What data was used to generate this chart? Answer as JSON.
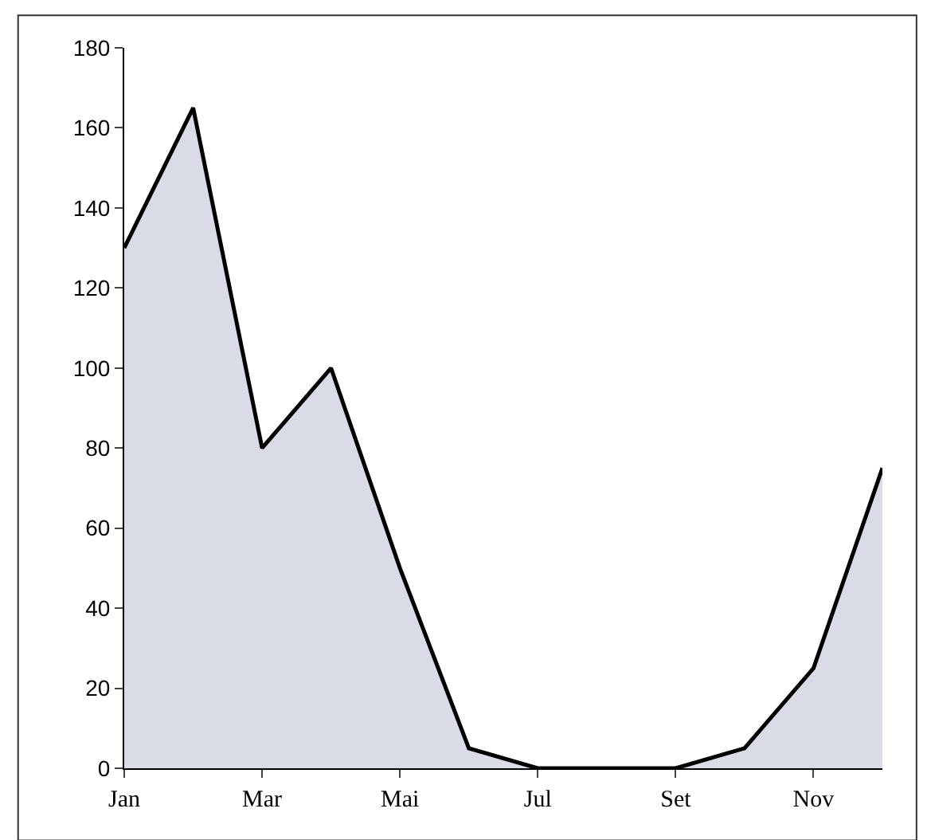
{
  "chart_data": {
    "type": "area",
    "categories": [
      "Jan",
      null,
      "Mar",
      null,
      "Mai",
      null,
      "Jul",
      null,
      "Set",
      null,
      "Nov",
      null
    ],
    "series": [
      {
        "color": "#d9dce6",
        "values": [
          130,
          165,
          80,
          100,
          50,
          5,
          0,
          0,
          0,
          5,
          25,
          75
        ]
      }
    ],
    "ylim": [
      0,
      180
    ],
    "yticks": [
      0,
      20,
      40,
      60,
      80,
      100,
      120,
      140,
      160,
      180
    ],
    "legend": false,
    "marker": "none",
    "line_style": "solid"
  }
}
